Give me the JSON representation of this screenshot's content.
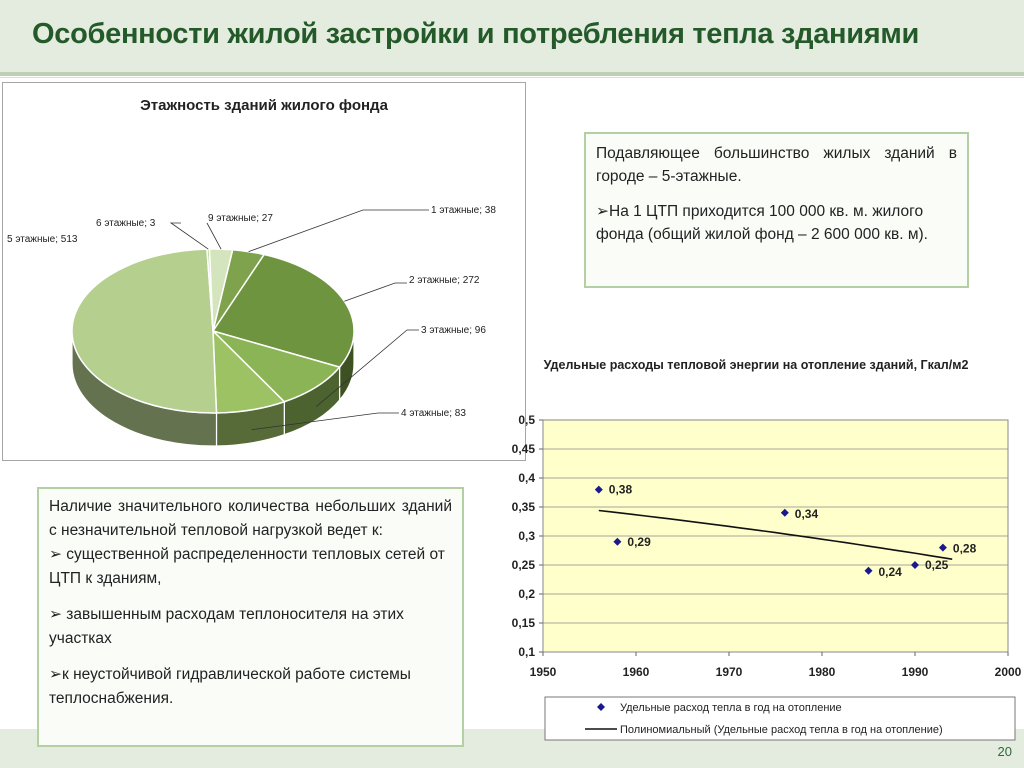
{
  "slide": {
    "title": "Особенности жилой застройки и потребления тепла зданиями",
    "page_number": "20"
  },
  "text_box_1": {
    "line1": "Подавляющее большинство жилых зданий в городе – 5-этажные.",
    "bullet": "На 1 ЦТП приходится 100 000 кв. м. жилого фонда (общий жилой фонд – 2 600 000 кв. м)."
  },
  "text_box_2": {
    "intro": "Наличие значительного количества небольших зданий с незначительной тепловой нагрузкой ведет к:",
    "bullets": [
      "существенной распределенности тепловых сетей от ЦТП к зданиям,",
      "завышенным расходам теплоносителя на этих участках",
      "к неустойчивой гидравлической работе системы теплоснабжения."
    ]
  },
  "chart_data": [
    {
      "type": "pie",
      "title": "Этажность зданий жилого фонда",
      "categories": [
        "1 этажные",
        "2 этажные",
        "3 этажные",
        "4 этажные",
        "5 этажные",
        "6 этажные",
        "9 этажные"
      ],
      "values": [
        38,
        272,
        96,
        83,
        513,
        3,
        27
      ],
      "labels": [
        "1 этажные; 38",
        "2 этажные; 272",
        "3 этажные; 96",
        "4 этажные; 83",
        "5 этажные; 513",
        "6 этажные; 3",
        "9 этажные; 27"
      ],
      "colors": [
        "#7ea34c",
        "#6f9440",
        "#8bb457",
        "#9cc264",
        "#b5cf8f",
        "#c3d9a3",
        "#d4e4bd"
      ],
      "style": "3d"
    },
    {
      "type": "scatter",
      "title": "Удельные расходы тепловой энергии на отопление зданий, Гкал/м2",
      "x": [
        1956,
        1958,
        1976,
        1985,
        1990,
        1993
      ],
      "y": [
        0.38,
        0.29,
        0.34,
        0.24,
        0.25,
        0.28
      ],
      "point_labels": [
        "0,38",
        "0,29",
        "0,34",
        "0,24",
        "0,25",
        "0,28"
      ],
      "trendline": {
        "type": "polynomial",
        "x_range": [
          1956,
          1994
        ],
        "y_start": 0.344,
        "y_end": 0.26
      },
      "xlim": [
        1950,
        2000
      ],
      "xticks": [
        "1950",
        "1960",
        "1970",
        "1980",
        "1990",
        "2000"
      ],
      "ylim": [
        0.1,
        0.5
      ],
      "yticks": [
        "0,1",
        "0,15",
        "0,2",
        "0,25",
        "0,3",
        "0,35",
        "0,4",
        "0,45",
        "0,5"
      ],
      "grid": true,
      "plot_background": "#ffffcc",
      "marker_color": "#1a1a8c",
      "legend": [
        "Удельные расход тепла в год на отопление",
        "Полиномиальный (Удельные расход тепла в год на отопление)"
      ],
      "legend_position": "bottom"
    }
  ]
}
